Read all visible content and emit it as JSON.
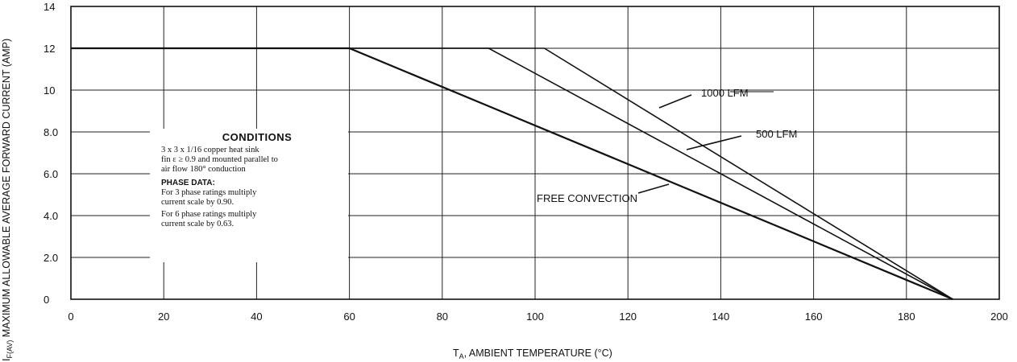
{
  "chart_data": {
    "type": "line",
    "title": "",
    "xlabel": "TA, AMBIENT TEMPERATURE (°C)",
    "xlabel_main": "T",
    "xlabel_sub": "A",
    "xlabel_rest": ", AMBIENT TEMPERATURE (°C)",
    "ylabel": "IF(AV), MAXIMUM ALLOWABLE AVERAGE FORWARD CURRENT (AMP)",
    "ylabel_main": "I",
    "ylabel_sub": "F(AV)",
    "ylabel_rest": " MAXIMUM ALLOWABLE AVERAGE FORWARD CURRENT (AMP)",
    "xlim": [
      0,
      200
    ],
    "ylim": [
      0,
      14
    ],
    "x_ticks": [
      0,
      20,
      40,
      60,
      80,
      100,
      120,
      140,
      160,
      180,
      200
    ],
    "x_tick_labels": [
      "0",
      "20",
      "40",
      "60",
      "80",
      "100",
      "120",
      "140",
      "160",
      "180",
      "200"
    ],
    "y_ticks": [
      0,
      2,
      4,
      6,
      8,
      10,
      12,
      14
    ],
    "y_tick_labels": [
      "0",
      "2.0",
      "4.0",
      "6.0",
      "8.0",
      "10",
      "12",
      "14"
    ],
    "grid": true,
    "series": [
      {
        "name": "FREE CONVECTION",
        "points": [
          [
            0,
            12
          ],
          [
            60,
            12
          ],
          [
            190,
            0
          ]
        ]
      },
      {
        "name": "500 LFM",
        "points": [
          [
            0,
            12
          ],
          [
            90,
            12
          ],
          [
            190,
            0
          ]
        ]
      },
      {
        "name": "1000 LFM",
        "points": [
          [
            0,
            12
          ],
          [
            102,
            12
          ],
          [
            190,
            0
          ]
        ]
      }
    ],
    "annotations": {
      "conditions_title": "CONDITIONS",
      "conditions_text_1": "3 x 3 x 1/16 copper heat sink",
      "conditions_text_2": "fin ε ≥ 0.9 and mounted parallel to",
      "conditions_text_3": "air flow 180° conduction",
      "phase_title": "PHASE DATA:",
      "phase_note_1a": "For 3 phase ratings multiply",
      "phase_note_1b": "current scale by 0.90.",
      "phase_note_2a": "For 6 phase ratings multiply",
      "phase_note_2b": "current scale by 0.63."
    }
  }
}
